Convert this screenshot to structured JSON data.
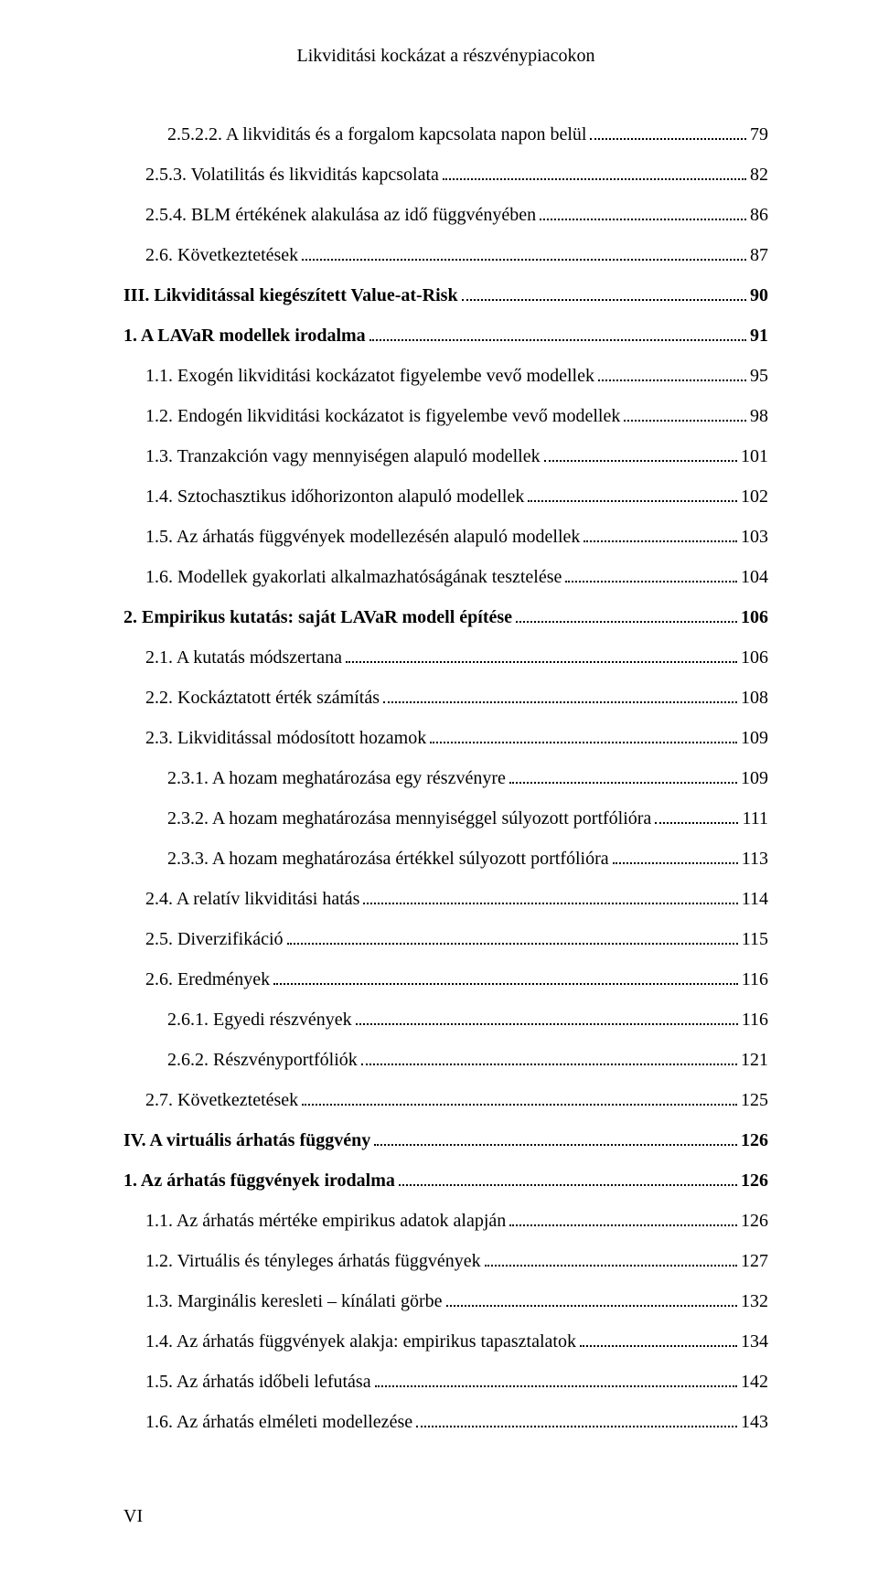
{
  "running_head": "Likviditási kockázat a részvénypiacokon",
  "page_number_roman": "VI",
  "toc": [
    {
      "level": 3,
      "label": "2.5.2.2. A likviditás és a forgalom kapcsolata napon belül",
      "page": "79"
    },
    {
      "level": 2,
      "label": "2.5.3. Volatilitás és likviditás kapcsolata",
      "page": "82"
    },
    {
      "level": 2,
      "label": "2.5.4. BLM értékének alakulása az idő függvényében",
      "page": "86"
    },
    {
      "level": 2,
      "label": "2.6. Következtetések",
      "page": "87"
    },
    {
      "level": 0,
      "label": "III. Likviditással kiegészített Value-at-Risk",
      "page": "90"
    },
    {
      "level": 1,
      "label": "1. A LAVaR modellek irodalma",
      "page": "91"
    },
    {
      "level": 2,
      "label": "1.1. Exogén likviditási kockázatot figyelembe vevő modellek",
      "page": "95"
    },
    {
      "level": 2,
      "label": "1.2. Endogén likviditási kockázatot is figyelembe vevő modellek",
      "page": "98"
    },
    {
      "level": 2,
      "label": "1.3. Tranzakción vagy mennyiségen alapuló modellek",
      "page": "101"
    },
    {
      "level": 2,
      "label": "1.4. Sztochasztikus időhorizonton alapuló modellek",
      "page": "102"
    },
    {
      "level": 2,
      "label": "1.5. Az árhatás függvények modellezésén alapuló modellek",
      "page": "103"
    },
    {
      "level": 2,
      "label": "1.6. Modellek gyakorlati alkalmazhatóságának tesztelése",
      "page": "104"
    },
    {
      "level": 1,
      "label": "2. Empirikus kutatás: saját LAVaR modell építése",
      "page": "106"
    },
    {
      "level": 2,
      "label": "2.1. A kutatás módszertana",
      "page": "106"
    },
    {
      "level": 2,
      "label": "2.2. Kockáztatott érték számítás",
      "page": "108"
    },
    {
      "level": 2,
      "label": "2.3. Likviditással módosított hozamok",
      "page": "109"
    },
    {
      "level": 3,
      "label": "2.3.1. A hozam meghatározása egy részvényre",
      "page": "109"
    },
    {
      "level": 3,
      "label": "2.3.2. A hozam meghatározása mennyiséggel súlyozott portfólióra",
      "page": "111"
    },
    {
      "level": 3,
      "label": "2.3.3. A hozam meghatározása értékkel súlyozott portfólióra",
      "page": "113"
    },
    {
      "level": 2,
      "label": "2.4. A relatív likviditási hatás",
      "page": "114"
    },
    {
      "level": 2,
      "label": "2.5. Diverzifikáció",
      "page": "115"
    },
    {
      "level": 2,
      "label": "2.6. Eredmények",
      "page": "116"
    },
    {
      "level": 3,
      "label": "2.6.1. Egyedi részvények",
      "page": "116"
    },
    {
      "level": 3,
      "label": "2.6.2. Részvényportfóliók",
      "page": "121"
    },
    {
      "level": 2,
      "label": "2.7. Következtetések",
      "page": "125"
    },
    {
      "level": 0,
      "label": "IV. A virtuális árhatás függvény",
      "page": "126"
    },
    {
      "level": 1,
      "label": "1. Az árhatás függvények irodalma",
      "page": "126"
    },
    {
      "level": 2,
      "label": "1.1. Az árhatás mértéke empirikus adatok alapján",
      "page": "126"
    },
    {
      "level": 2,
      "label": "1.2. Virtuális és tényleges árhatás függvények",
      "page": "127"
    },
    {
      "level": 2,
      "label": "1.3. Marginális keresleti – kínálati görbe",
      "page": "132"
    },
    {
      "level": 2,
      "label": "1.4. Az árhatás függvények alakja: empirikus tapasztalatok",
      "page": "134"
    },
    {
      "level": 2,
      "label": "1.5. Az árhatás időbeli lefutása",
      "page": "142"
    },
    {
      "level": 2,
      "label": "1.6. Az árhatás elméleti modellezése",
      "page": "143"
    }
  ]
}
